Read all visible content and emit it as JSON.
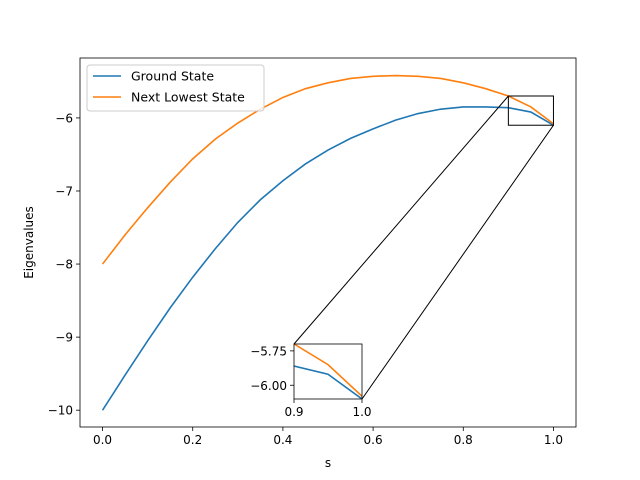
{
  "chart_data": {
    "type": "line",
    "title": "",
    "xlabel": "s",
    "ylabel": "Eigenvalues",
    "xlim": [
      -0.05,
      1.05
    ],
    "ylim": [
      -10.23,
      -5.18
    ],
    "x_ticks": [
      0.0,
      0.2,
      0.4,
      0.6,
      0.8,
      1.0
    ],
    "x_tick_labels": [
      "0.0",
      "0.2",
      "0.4",
      "0.6",
      "0.8",
      "1.0"
    ],
    "y_ticks": [
      -10,
      -9,
      -8,
      -7,
      -6
    ],
    "y_tick_labels": [
      "−10",
      "−9",
      "−8",
      "−7",
      "−6"
    ],
    "legend_position": "upper left",
    "grid": false,
    "x": [
      0.0,
      0.05,
      0.1,
      0.15,
      0.2,
      0.25,
      0.3,
      0.35,
      0.4,
      0.45,
      0.5,
      0.55,
      0.6,
      0.65,
      0.7,
      0.75,
      0.8,
      0.85,
      0.9,
      0.95,
      1.0
    ],
    "series": [
      {
        "name": "Ground State",
        "color": "#1f77b4",
        "values": [
          -10.0,
          -9.52,
          -9.05,
          -8.6,
          -8.18,
          -7.79,
          -7.43,
          -7.12,
          -6.86,
          -6.63,
          -6.44,
          -6.28,
          -6.15,
          -6.03,
          -5.94,
          -5.88,
          -5.85,
          -5.85,
          -5.86,
          -5.92,
          -6.1
        ]
      },
      {
        "name": "Next Lowest State",
        "color": "#ff7f0e",
        "values": [
          -8.0,
          -7.6,
          -7.23,
          -6.88,
          -6.56,
          -6.29,
          -6.07,
          -5.88,
          -5.72,
          -5.6,
          -5.52,
          -5.46,
          -5.43,
          -5.42,
          -5.43,
          -5.46,
          -5.52,
          -5.6,
          -5.7,
          -5.85,
          -6.08
        ]
      }
    ],
    "inset": {
      "xlim": [
        0.9,
        1.0
      ],
      "ylim": [
        -6.1,
        -5.7
      ],
      "x_ticks": [
        0.9,
        1.0
      ],
      "x_tick_labels": [
        "0.9",
        "1.0"
      ],
      "y_ticks": [
        -5.75,
        -6.0
      ],
      "y_tick_labels": [
        "−5.75",
        "−6.00"
      ]
    }
  }
}
